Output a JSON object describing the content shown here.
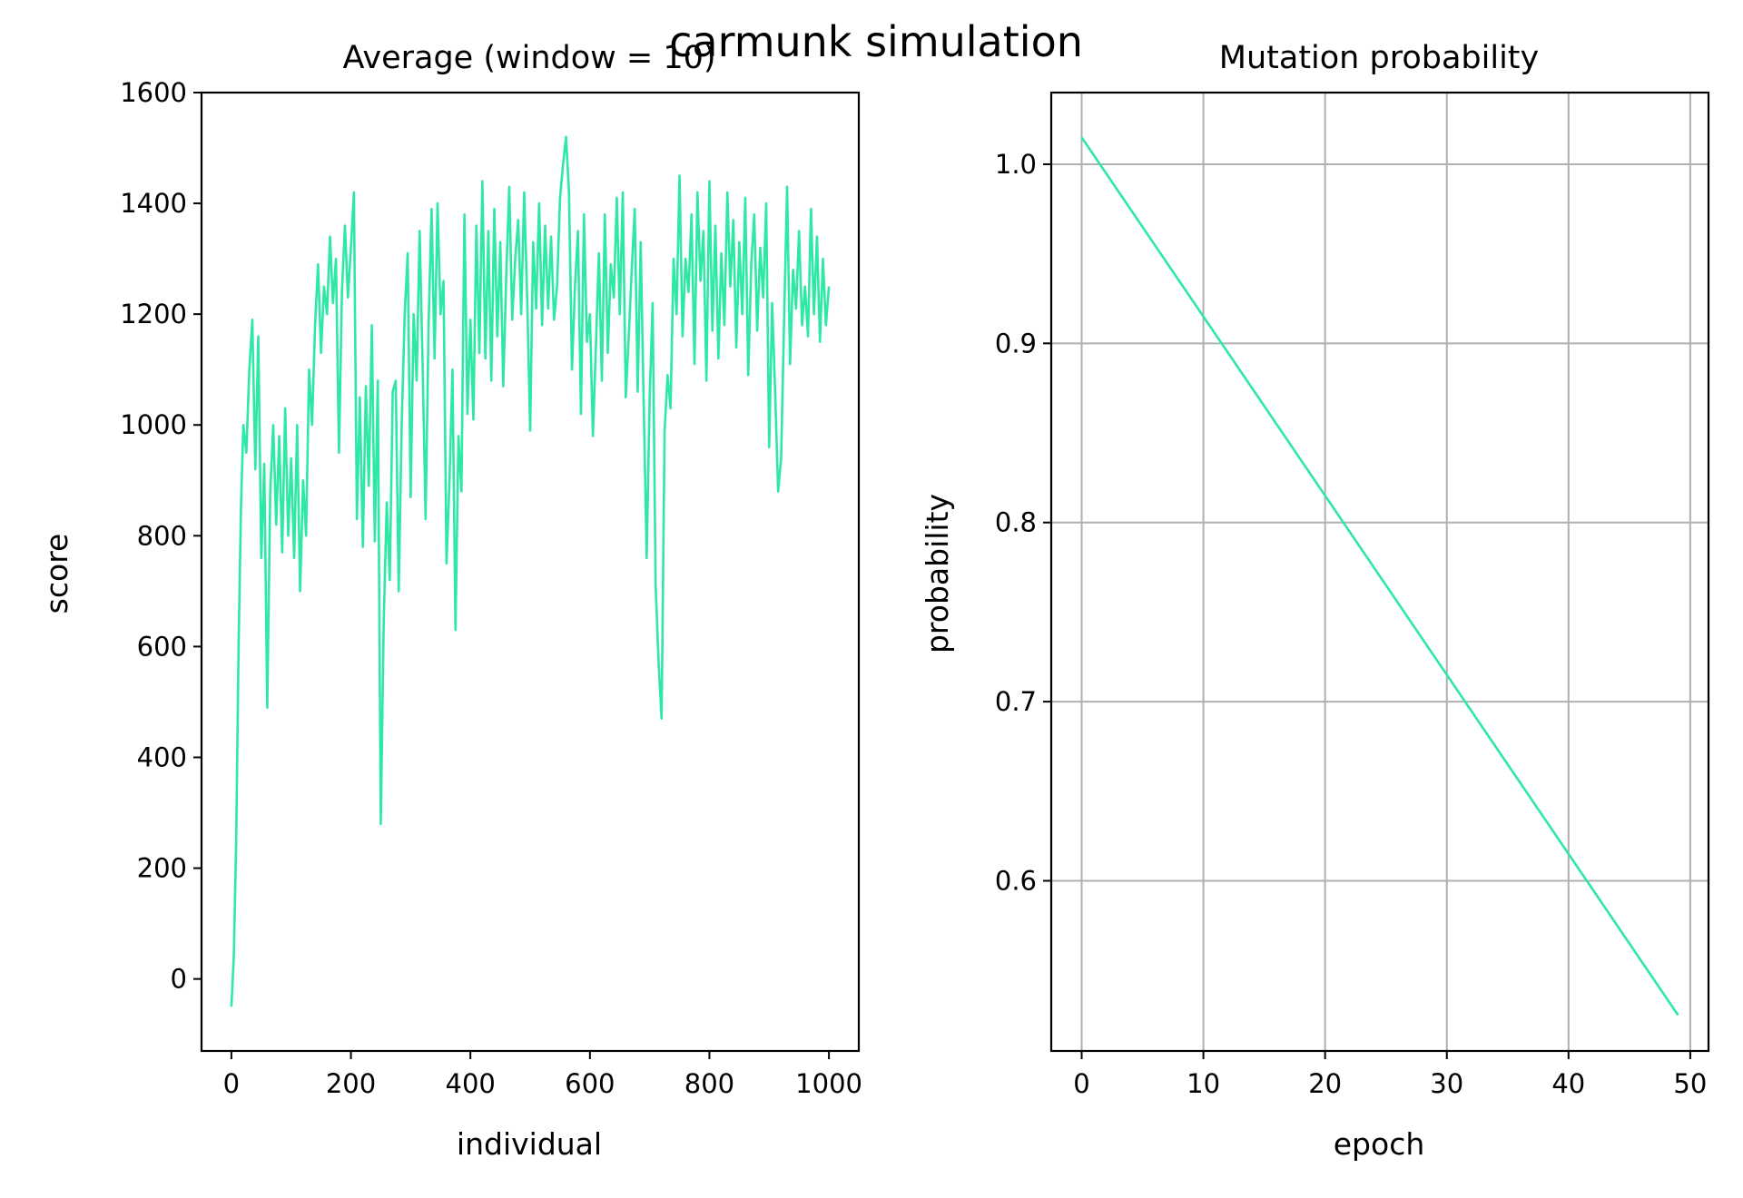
{
  "suptitle": "carmunk simulation",
  "line_color": "#2ee8a5",
  "chart_data": [
    {
      "type": "line",
      "title": "Average (window = 10)",
      "xlabel": "individual",
      "ylabel": "score",
      "xlim": [
        -50,
        1050
      ],
      "ylim": [
        -130,
        1600
      ],
      "xticks": [
        0,
        200,
        400,
        600,
        800,
        1000
      ],
      "yticks": [
        0,
        200,
        400,
        600,
        800,
        1000,
        1200,
        1400,
        1600
      ],
      "grid": false,
      "series": [
        {
          "x": [
            0,
            4,
            8,
            12,
            16,
            20,
            25,
            30,
            35,
            40,
            45,
            50,
            55,
            60,
            65,
            70,
            75,
            80,
            85,
            90,
            95,
            100,
            105,
            110,
            115,
            120,
            125,
            130,
            135,
            140,
            145,
            150,
            155,
            160,
            165,
            170,
            175,
            180,
            185,
            190,
            195,
            200,
            205,
            210,
            215,
            220,
            225,
            230,
            235,
            240,
            245,
            250,
            255,
            260,
            265,
            270,
            275,
            280,
            285,
            290,
            295,
            300,
            305,
            310,
            315,
            320,
            325,
            330,
            335,
            340,
            345,
            350,
            355,
            360,
            365,
            370,
            375,
            380,
            385,
            390,
            395,
            400,
            405,
            410,
            415,
            420,
            425,
            430,
            435,
            440,
            445,
            450,
            455,
            460,
            465,
            470,
            475,
            480,
            485,
            490,
            495,
            500,
            505,
            510,
            515,
            520,
            525,
            530,
            535,
            540,
            545,
            550,
            555,
            560,
            565,
            570,
            575,
            580,
            585,
            590,
            595,
            600,
            605,
            610,
            615,
            620,
            625,
            630,
            635,
            640,
            645,
            650,
            655,
            660,
            665,
            670,
            675,
            680,
            685,
            690,
            695,
            700,
            705,
            710,
            715,
            720,
            725,
            730,
            735,
            740,
            745,
            750,
            755,
            760,
            765,
            770,
            775,
            780,
            785,
            790,
            795,
            800,
            805,
            810,
            815,
            820,
            825,
            830,
            835,
            840,
            845,
            850,
            855,
            860,
            865,
            870,
            875,
            880,
            885,
            890,
            895,
            900,
            905,
            910,
            915,
            920,
            925,
            930,
            935,
            940,
            945,
            950,
            955,
            960,
            965,
            970,
            975,
            980,
            985,
            990,
            995,
            1000
          ],
          "y": [
            -50,
            40,
            250,
            600,
            850,
            1000,
            950,
            1100,
            1190,
            920,
            1160,
            760,
            930,
            490,
            880,
            1000,
            820,
            980,
            770,
            1030,
            800,
            940,
            760,
            1000,
            700,
            900,
            800,
            1100,
            1000,
            1180,
            1290,
            1130,
            1250,
            1200,
            1340,
            1220,
            1300,
            950,
            1240,
            1360,
            1230,
            1320,
            1420,
            830,
            1050,
            780,
            1070,
            890,
            1180,
            790,
            1080,
            280,
            650,
            860,
            720,
            1060,
            1080,
            700,
            1000,
            1200,
            1310,
            870,
            1200,
            1080,
            1350,
            1110,
            830,
            1180,
            1390,
            1120,
            1400,
            1200,
            1260,
            750,
            900,
            1100,
            630,
            980,
            880,
            1380,
            1020,
            1190,
            1010,
            1360,
            1130,
            1440,
            1120,
            1350,
            1080,
            1390,
            1160,
            1330,
            1070,
            1270,
            1430,
            1190,
            1300,
            1370,
            1200,
            1420,
            1230,
            990,
            1330,
            1210,
            1400,
            1180,
            1360,
            1210,
            1340,
            1190,
            1250,
            1410,
            1470,
            1520,
            1420,
            1100,
            1250,
            1350,
            1020,
            1380,
            1150,
            1200,
            980,
            1140,
            1310,
            1080,
            1380,
            1130,
            1290,
            1230,
            1410,
            1200,
            1420,
            1050,
            1160,
            1280,
            1390,
            1060,
            1330,
            1040,
            760,
            1050,
            1220,
            710,
            570,
            470,
            990,
            1090,
            1030,
            1300,
            1200,
            1450,
            1160,
            1300,
            1240,
            1380,
            1110,
            1420,
            1260,
            1350,
            1080,
            1440,
            1170,
            1360,
            1120,
            1310,
            1180,
            1420,
            1250,
            1370,
            1140,
            1330,
            1200,
            1410,
            1090,
            1290,
            1380,
            1170,
            1320,
            1230,
            1400,
            960,
            1220,
            1060,
            880,
            940,
            1190,
            1430,
            1110,
            1280,
            1210,
            1350,
            1180,
            1250,
            1160,
            1390,
            1200,
            1340,
            1150,
            1300,
            1180,
            1250
          ]
        }
      ]
    },
    {
      "type": "line",
      "title": "Mutation probability",
      "xlabel": "epoch",
      "ylabel": "probability",
      "xlim": [
        -2.5,
        51.5
      ],
      "ylim": [
        0.505,
        1.04
      ],
      "xticks": [
        0,
        10,
        20,
        30,
        40,
        50
      ],
      "yticks": [
        0.6,
        0.7,
        0.8,
        0.9,
        1.0
      ],
      "ytick_labels": [
        "0.6",
        "0.7",
        "0.8",
        "0.9",
        "1.0"
      ],
      "grid": true,
      "series": [
        {
          "x": [
            0,
            49
          ],
          "y": [
            1.015,
            0.525
          ]
        }
      ]
    }
  ]
}
